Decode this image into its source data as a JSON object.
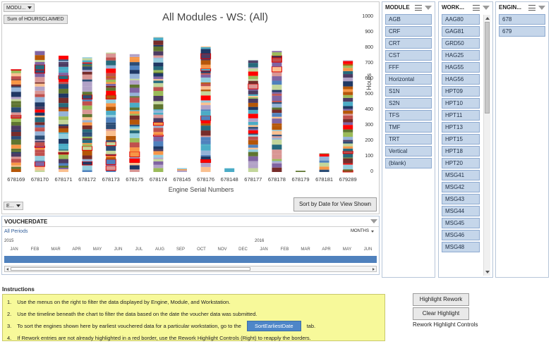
{
  "chart": {
    "module_dropdown_label": "MODU...",
    "field_button": "Sum of HOURSCLAIMED",
    "title": "All Modules - WS: (All)",
    "y_axis_title": "Hours",
    "x_axis_title": "Engine Serial Numbers",
    "engine_dropdown_label": "E...",
    "sort_button": "Sort by Date for View Shown",
    "y_ticks": [
      "1000",
      "900",
      "800",
      "700",
      "600",
      "500",
      "400",
      "300",
      "200",
      "100",
      "0"
    ]
  },
  "chart_data": {
    "type": "bar",
    "stacked": true,
    "title": "All Modules - WS: (All)",
    "xlabel": "Engine Serial Numbers",
    "ylabel": "Hours",
    "ylim": [
      0,
      1000
    ],
    "categories": [
      "678169",
      "678170",
      "678171",
      "678172",
      "678173",
      "678175",
      "678174",
      "678145",
      "678176",
      "678148",
      "678177",
      "678178",
      "678179",
      "678181",
      "679289"
    ],
    "values": [
      660,
      780,
      750,
      740,
      770,
      760,
      870,
      25,
      810,
      25,
      720,
      780,
      8,
      120,
      720
    ]
  },
  "slicers": {
    "module": {
      "title": "MODULE",
      "items": [
        "AGB",
        "CRF",
        "CRT",
        "CST",
        "FFF",
        "Horizontal",
        "S1N",
        "S2N",
        "TFS",
        "TMF",
        "TRT",
        "Vertical",
        "(blank)"
      ]
    },
    "workstation": {
      "title": "WORK...",
      "items": [
        "AAG80",
        "GAG81",
        "GRD50",
        "HAG25",
        "HAG55",
        "HAG56",
        "HPT09",
        "HPT10",
        "HPT11",
        "HPT13",
        "HPT15",
        "HPT18",
        "HPT20",
        "MSG41",
        "MSG42",
        "MSG43",
        "MSG44",
        "MSG45",
        "MSG46",
        "MSG48"
      ]
    },
    "engine": {
      "title": "ENGIN...",
      "items": [
        "678",
        "679"
      ]
    }
  },
  "timeline": {
    "title": "VOUCHERDATE",
    "period_label": "All Periods",
    "level_label": "MONTHS",
    "year_2015": "2015",
    "year_2016": "2016",
    "months": [
      "JAN",
      "FEB",
      "MAR",
      "APR",
      "MAY",
      "JUN",
      "JUL",
      "AUG",
      "SEP",
      "OCT",
      "NOV",
      "DEC",
      "JAN",
      "FEB",
      "MAR",
      "APR",
      "MAY",
      "JUN"
    ]
  },
  "instructions": {
    "heading": "Instructions",
    "items": [
      {
        "num": "1.",
        "text": "Use the menus on the right to filter the data displayed by Engine, Module, and Workstation."
      },
      {
        "num": "2.",
        "text": "Use the timeline beneath the chart to filter the data based on the date the voucher data was submitted."
      },
      {
        "num": "3.",
        "text": "To sort the engines shown here by earliest vouchered data for a particular workstation, go to the",
        "button": "SortEarliestDate",
        "after": "tab."
      },
      {
        "num": "4.",
        "text": "If Rework entries are not already highlighted in a red border, use the Rework Highlight Controls (Right) to reapply the borders."
      }
    ]
  },
  "controls": {
    "highlight_rework": "Highlight Rework",
    "clear_highlight": "Clear Highlight",
    "caption": "Rework Highlight Controls"
  }
}
